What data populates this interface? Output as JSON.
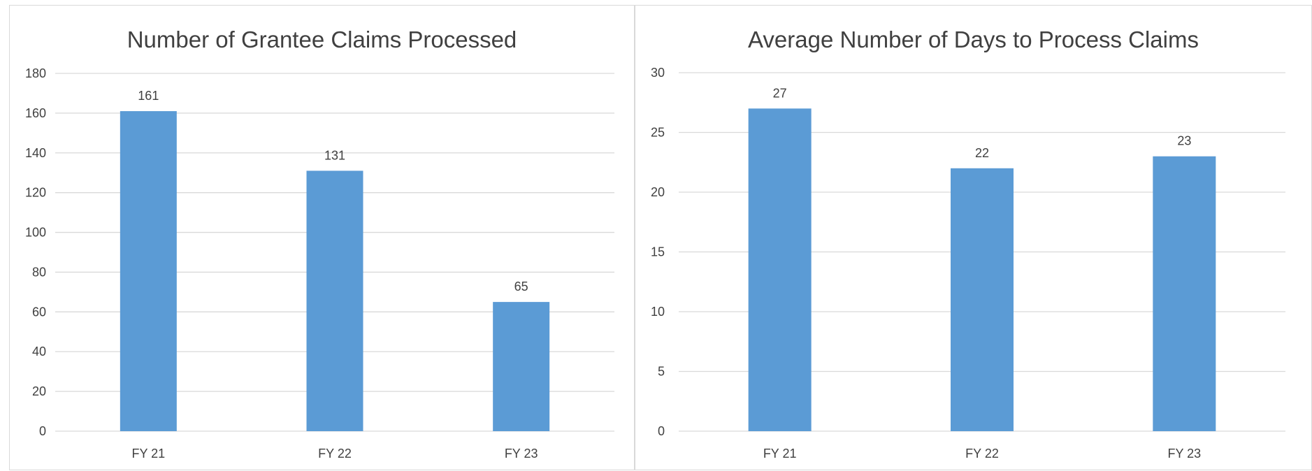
{
  "chart_data": [
    {
      "type": "bar",
      "title": "Number of Grantee Claims Processed",
      "categories": [
        "FY 21",
        "FY 22",
        "FY 23"
      ],
      "values": [
        161,
        131,
        65
      ],
      "data_labels": [
        "161",
        "131",
        "65"
      ],
      "yticks": [
        0,
        20,
        40,
        60,
        80,
        100,
        120,
        140,
        160,
        180
      ],
      "ylim": [
        0,
        180
      ],
      "xlabel": "",
      "ylabel": "",
      "grid": true,
      "bar_color": "#5b9bd5"
    },
    {
      "type": "bar",
      "title": "Average Number of Days to Process Claims",
      "categories": [
        "FY 21",
        "FY 22",
        "FY 23"
      ],
      "values": [
        27,
        22,
        23
      ],
      "data_labels": [
        "27",
        "22",
        "23"
      ],
      "yticks": [
        0,
        5,
        10,
        15,
        20,
        25,
        30
      ],
      "ylim": [
        0,
        30
      ],
      "xlabel": "",
      "ylabel": "",
      "grid": true,
      "bar_color": "#5b9bd5"
    }
  ]
}
